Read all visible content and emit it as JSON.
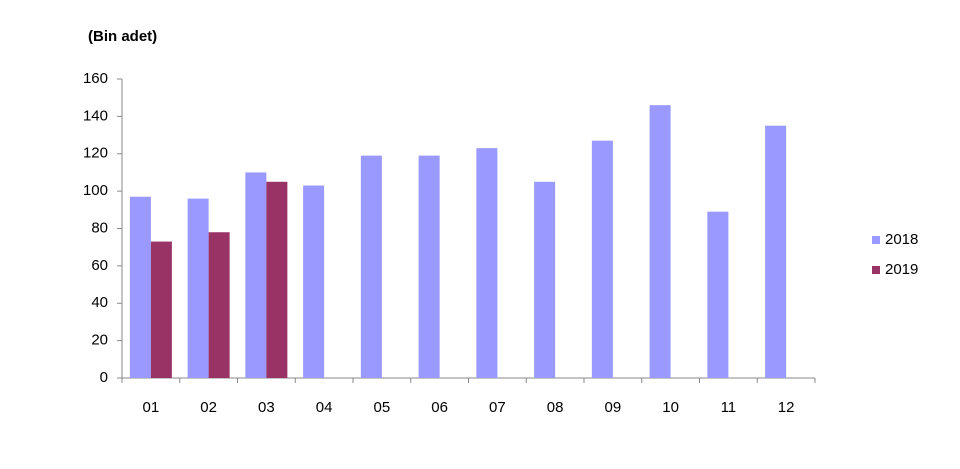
{
  "chart_data": {
    "type": "bar",
    "title": "(Bin adet)",
    "categories": [
      "01",
      "02",
      "03",
      "04",
      "05",
      "06",
      "07",
      "08",
      "09",
      "10",
      "11",
      "12"
    ],
    "series": [
      {
        "name": "2018",
        "color": "#9999ff",
        "values": [
          97,
          96,
          110,
          103,
          119,
          119,
          123,
          105,
          127,
          146,
          89,
          135
        ]
      },
      {
        "name": "2019",
        "color": "#993366",
        "values": [
          73,
          78,
          105,
          null,
          null,
          null,
          null,
          null,
          null,
          null,
          null,
          null
        ]
      }
    ],
    "ylim": [
      0,
      160
    ],
    "yticks": [
      0,
      20,
      40,
      60,
      80,
      100,
      120,
      140,
      160
    ],
    "grid": false,
    "legend": "right"
  }
}
